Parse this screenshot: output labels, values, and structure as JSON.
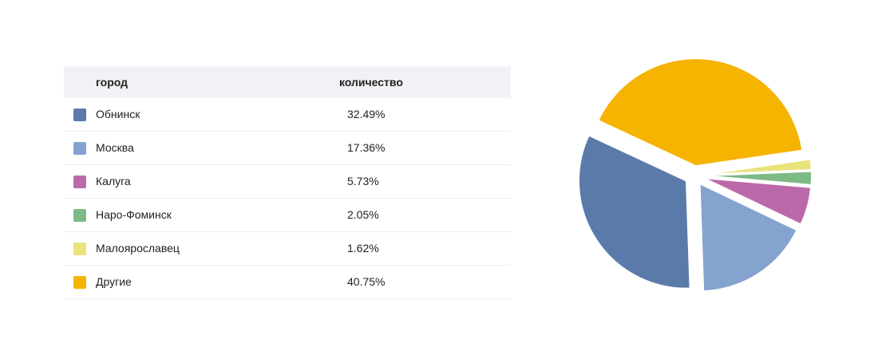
{
  "table": {
    "headers": {
      "city": "город",
      "count": "количество"
    },
    "rows": [
      {
        "name": "Обнинск",
        "value": "32.49%",
        "color": "#5a7ba9"
      },
      {
        "name": "Москва",
        "value": "17.36%",
        "color": "#85a3cf"
      },
      {
        "name": "Калуга",
        "value": "5.73%",
        "color": "#bc69aa"
      },
      {
        "name": "Наро-Фоминск",
        "value": "2.05%",
        "color": "#7dba85"
      },
      {
        "name": "Малоярославец",
        "value": "1.62%",
        "color": "#e8e37a"
      },
      {
        "name": "Другие",
        "value": "40.75%",
        "color": "#f4b400"
      }
    ]
  },
  "chart_data": {
    "type": "pie",
    "categories": [
      "Обнинск",
      "Москва",
      "Калуга",
      "Наро-Фоминск",
      "Малоярославец",
      "Другие"
    ],
    "values": [
      32.49,
      17.36,
      5.73,
      2.05,
      1.62,
      40.75
    ],
    "colors": [
      "#5a7ba9",
      "#85a3cf",
      "#bc69aa",
      "#7dba85",
      "#e8e37a",
      "#f4b400"
    ],
    "legend": "left-table",
    "exploded": true
  }
}
